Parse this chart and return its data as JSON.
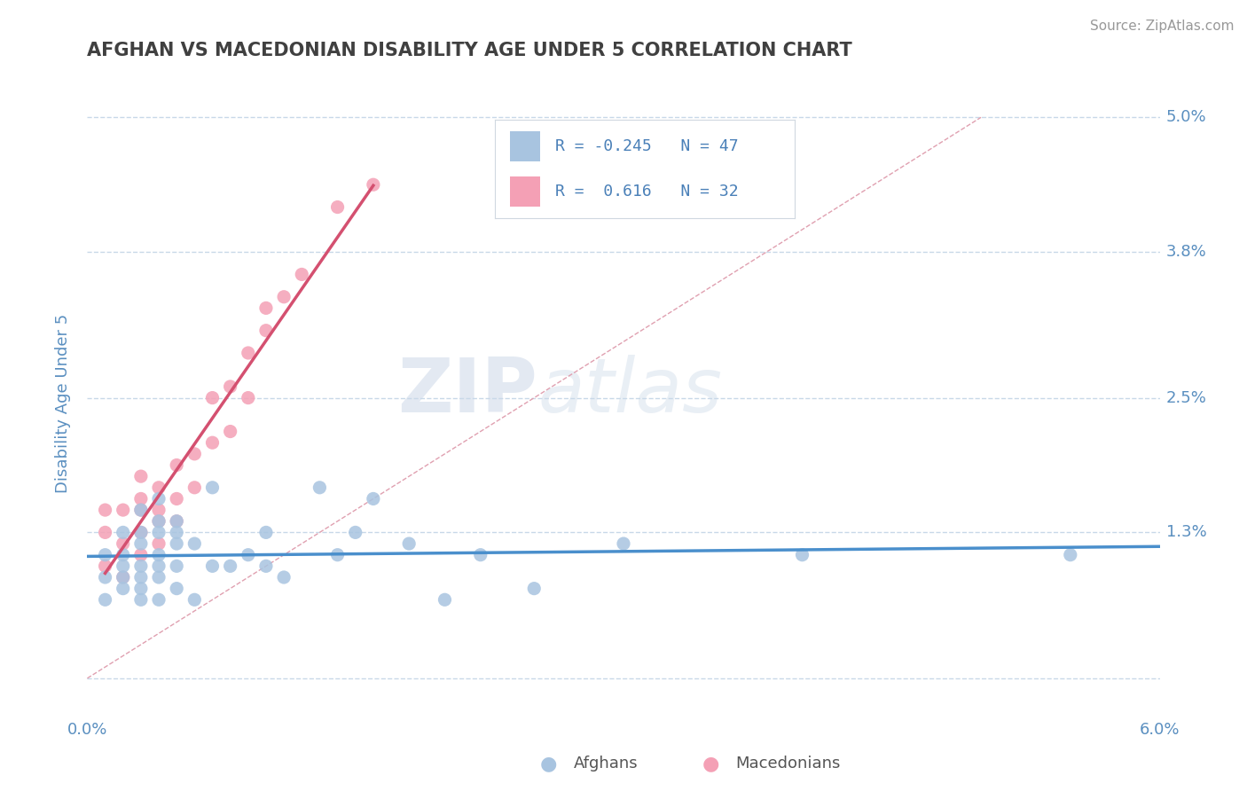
{
  "title": "AFGHAN VS MACEDONIAN DISABILITY AGE UNDER 5 CORRELATION CHART",
  "source": "Source: ZipAtlas.com",
  "ylabel": "Disability Age Under 5",
  "xlim": [
    0.0,
    0.06
  ],
  "ylim": [
    -0.003,
    0.052
  ],
  "xticks": [
    0.0,
    0.01,
    0.02,
    0.03,
    0.04,
    0.05,
    0.06
  ],
  "xticklabels": [
    "0.0%",
    "",
    "",
    "",
    "",
    "",
    "6.0%"
  ],
  "yticks": [
    0.0,
    0.013,
    0.025,
    0.038,
    0.05
  ],
  "yticklabels": [
    "",
    "1.3%",
    "2.5%",
    "3.8%",
    "5.0%"
  ],
  "afghan_color": "#a8c4e0",
  "macedonian_color": "#f4a0b5",
  "afghan_line_color": "#4a8fcc",
  "macedonian_line_color": "#d45070",
  "afghan_R": -0.245,
  "afghan_N": 47,
  "macedonian_R": 0.616,
  "macedonian_N": 32,
  "watermark_zip": "ZIP",
  "watermark_atlas": "atlas",
  "grid_color": "#c8d8e8",
  "title_color": "#404040",
  "axis_tick_color": "#5a8fc0",
  "diag_line_color": "#e0a0b0",
  "afghan_points_x": [
    0.001,
    0.001,
    0.001,
    0.002,
    0.002,
    0.002,
    0.002,
    0.002,
    0.003,
    0.003,
    0.003,
    0.003,
    0.003,
    0.003,
    0.003,
    0.004,
    0.004,
    0.004,
    0.004,
    0.004,
    0.004,
    0.004,
    0.005,
    0.005,
    0.005,
    0.005,
    0.005,
    0.006,
    0.006,
    0.007,
    0.007,
    0.008,
    0.009,
    0.01,
    0.01,
    0.011,
    0.013,
    0.014,
    0.015,
    0.016,
    0.018,
    0.02,
    0.022,
    0.025,
    0.03,
    0.04,
    0.055
  ],
  "afghan_points_y": [
    0.007,
    0.009,
    0.011,
    0.008,
    0.009,
    0.01,
    0.011,
    0.013,
    0.007,
    0.008,
    0.009,
    0.01,
    0.012,
    0.013,
    0.015,
    0.007,
    0.009,
    0.01,
    0.011,
    0.013,
    0.014,
    0.016,
    0.008,
    0.01,
    0.012,
    0.013,
    0.014,
    0.007,
    0.012,
    0.01,
    0.017,
    0.01,
    0.011,
    0.01,
    0.013,
    0.009,
    0.017,
    0.011,
    0.013,
    0.016,
    0.012,
    0.007,
    0.011,
    0.008,
    0.012,
    0.011,
    0.011
  ],
  "macedonian_points_x": [
    0.001,
    0.001,
    0.001,
    0.002,
    0.002,
    0.002,
    0.003,
    0.003,
    0.003,
    0.003,
    0.003,
    0.004,
    0.004,
    0.004,
    0.004,
    0.005,
    0.005,
    0.005,
    0.006,
    0.006,
    0.007,
    0.007,
    0.008,
    0.008,
    0.009,
    0.009,
    0.01,
    0.01,
    0.011,
    0.012,
    0.014,
    0.016
  ],
  "macedonian_points_y": [
    0.01,
    0.013,
    0.015,
    0.009,
    0.012,
    0.015,
    0.011,
    0.013,
    0.015,
    0.016,
    0.018,
    0.012,
    0.014,
    0.015,
    0.017,
    0.014,
    0.016,
    0.019,
    0.017,
    0.02,
    0.021,
    0.025,
    0.022,
    0.026,
    0.025,
    0.029,
    0.031,
    0.033,
    0.034,
    0.036,
    0.042,
    0.044
  ]
}
